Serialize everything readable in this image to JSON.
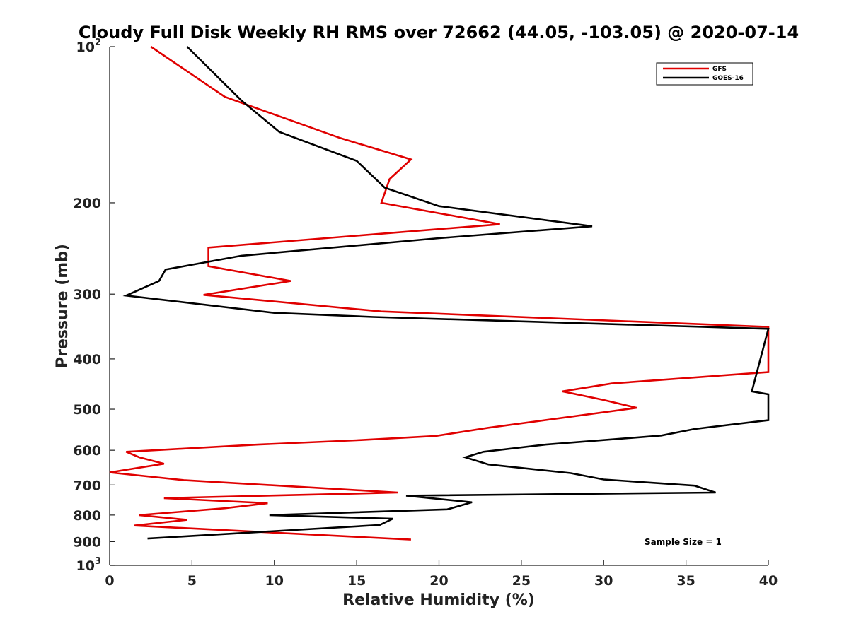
{
  "chart_data": {
    "type": "line",
    "title": "Cloudy Full Disk Weekly RH RMS over 72662 (44.05, -103.05) @ 2020-07-14",
    "xlabel": "Relative Humidity (%)",
    "ylabel": "Pressure (mb)",
    "xlim": [
      0,
      40
    ],
    "ylim": [
      100,
      1000
    ],
    "y_scale": "log",
    "y_reversed": true,
    "grid": false,
    "legend_position": "top-right",
    "annotation": "Sample Size = 1",
    "x_ticks": [
      "0",
      "5",
      "10",
      "15",
      "20",
      "25",
      "30",
      "35",
      "40"
    ],
    "y_ticks": [
      {
        "value": 100,
        "base": "10",
        "exp": "2"
      },
      {
        "value": 200,
        "label": "200"
      },
      {
        "value": 300,
        "label": "300"
      },
      {
        "value": 400,
        "label": "400"
      },
      {
        "value": 500,
        "label": "500"
      },
      {
        "value": 600,
        "label": "600"
      },
      {
        "value": 700,
        "label": "700"
      },
      {
        "value": 800,
        "label": "800"
      },
      {
        "value": 900,
        "label": "900"
      },
      {
        "value": 1000,
        "base": "10",
        "exp": "3"
      }
    ],
    "series": [
      {
        "name": "GFS",
        "color": "#e00000",
        "points": [
          [
            2.5,
            100
          ],
          [
            7.0,
            125
          ],
          [
            14.0,
            150
          ],
          [
            18.3,
            165
          ],
          [
            17.0,
            180
          ],
          [
            16.5,
            200
          ],
          [
            23.7,
            220
          ],
          [
            6.0,
            244
          ],
          [
            6.0,
            265
          ],
          [
            11.0,
            283
          ],
          [
            5.7,
            301
          ],
          [
            16.5,
            324
          ],
          [
            40.0,
            347
          ],
          [
            40.0,
            424
          ],
          [
            30.5,
            446
          ],
          [
            27.5,
            462
          ],
          [
            30.0,
            480
          ],
          [
            32.0,
            497
          ],
          [
            23.0,
            543
          ],
          [
            19.8,
            563
          ],
          [
            15.0,
            574
          ],
          [
            9.0,
            585
          ],
          [
            1.0,
            604
          ],
          [
            1.8,
            619
          ],
          [
            3.3,
            637
          ],
          [
            0.0,
            662
          ],
          [
            4.5,
            685
          ],
          [
            17.5,
            724
          ],
          [
            3.3,
            742
          ],
          [
            9.6,
            759
          ],
          [
            7.0,
            776
          ],
          [
            1.8,
            800
          ],
          [
            4.7,
            817
          ],
          [
            1.5,
            838
          ],
          [
            18.3,
            892
          ]
        ]
      },
      {
        "name": "GOES-16",
        "color": "#000000",
        "points": [
          [
            4.7,
            100
          ],
          [
            8.0,
            127
          ],
          [
            10.3,
            146
          ],
          [
            15.0,
            166
          ],
          [
            16.7,
            187
          ],
          [
            20.0,
            203
          ],
          [
            29.3,
            222
          ],
          [
            20.0,
            234
          ],
          [
            8.0,
            253
          ],
          [
            3.4,
            269
          ],
          [
            3.0,
            283
          ],
          [
            1.0,
            302
          ],
          [
            10.0,
            326
          ],
          [
            16.0,
            332
          ],
          [
            40.0,
            350
          ],
          [
            39.0,
            462
          ],
          [
            40.0,
            468
          ],
          [
            40.0,
            525
          ],
          [
            35.5,
            546
          ],
          [
            33.5,
            562
          ],
          [
            26.5,
            585
          ],
          [
            22.7,
            604
          ],
          [
            21.6,
            619
          ],
          [
            23.0,
            639
          ],
          [
            28.0,
            664
          ],
          [
            30.0,
            683
          ],
          [
            35.5,
            702
          ],
          [
            36.8,
            724
          ],
          [
            18.0,
            734
          ],
          [
            22.0,
            756
          ],
          [
            20.5,
            780
          ],
          [
            9.7,
            800
          ],
          [
            17.2,
            813
          ],
          [
            16.4,
            836
          ],
          [
            2.3,
            888
          ]
        ]
      }
    ]
  }
}
